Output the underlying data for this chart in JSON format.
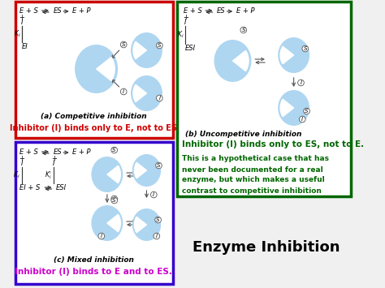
{
  "title": "Enzyme Inhibition",
  "bg_color": "#f0f0f0",
  "enzyme_color": "#aed6f1",
  "panel_a": {
    "border_color": "#cc0000",
    "title": "(a) Competitive inhibition",
    "subtitle": "Inhibitor (I) binds only to E, not to ES",
    "subtitle_color": "#cc0000"
  },
  "panel_b": {
    "border_color": "#006600",
    "title": "(b) Uncompetitive inhibition",
    "subtitle": "Inhibitor (I) binds only to ES, not to E.",
    "subtitle_color": "#006600",
    "text2_lines": [
      "This is a hypothetical case that has",
      "never been documented for a real",
      "enzyme, but which makes a useful",
      "contrast to competitive inhibition"
    ],
    "text2_color": "#006600"
  },
  "panel_c": {
    "border_color": "#3300cc",
    "title": "(c) Mixed inhibition",
    "subtitle": "Inhibitor (I) binds to E and to ES.",
    "subtitle_color": "#cc00cc"
  }
}
